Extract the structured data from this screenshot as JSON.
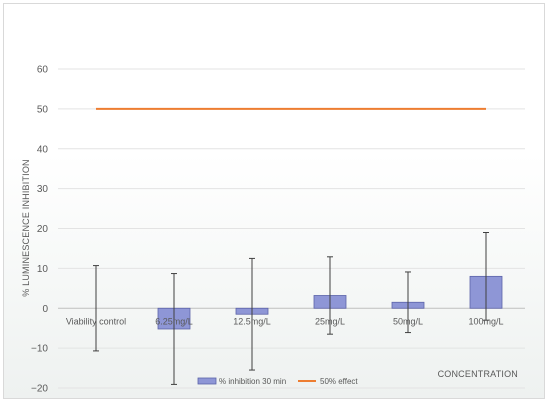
{
  "chart_data": {
    "type": "bar",
    "title": "",
    "ylabel": "%  LUMINESCENCE INHIBITION",
    "xlabel": "CONCENTRATION",
    "ylim": [
      -20,
      60
    ],
    "yticks": [
      -20,
      -10,
      0,
      10,
      20,
      30,
      40,
      50,
      60
    ],
    "grid": true,
    "legend_position": "bottom",
    "categories": [
      "Viability control",
      "6.25mg/L",
      "12.5mg/L",
      "25mg/L",
      "50mg/L",
      "100mg/L"
    ],
    "series": [
      {
        "name": "% inhibition 30 min",
        "kind": "bar",
        "color": "#8e96d6",
        "edge_color": "#5c63a8",
        "values": [
          0,
          -5.2,
          -1.5,
          3.2,
          1.5,
          8.0
        ],
        "error": [
          10.7,
          13.9,
          14.0,
          9.7,
          7.6,
          11.0
        ]
      },
      {
        "name": "50% effect",
        "kind": "line",
        "color": "#ed7d31",
        "values": [
          50,
          50,
          50,
          50,
          50,
          50
        ]
      }
    ]
  }
}
